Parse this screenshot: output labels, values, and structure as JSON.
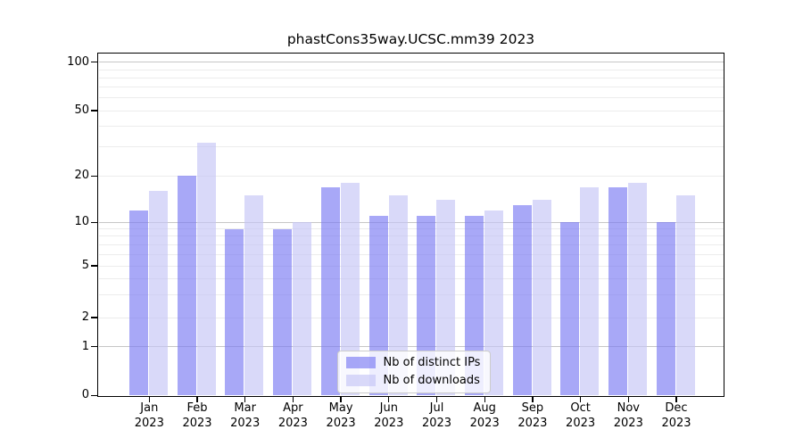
{
  "title": "phastCons35way.UCSC.mm39 2023",
  "chart_data": {
    "type": "bar",
    "categories": [
      "Jan",
      "Feb",
      "Mar",
      "Apr",
      "May",
      "Jun",
      "Jul",
      "Aug",
      "Sep",
      "Oct",
      "Nov",
      "Dec"
    ],
    "category_year": "2023",
    "series": [
      {
        "name": "Nb of distinct IPs",
        "color": "rgba(121,121,243,0.65)",
        "values": [
          12,
          20,
          9,
          9,
          17,
          11,
          11,
          11,
          13,
          10,
          17,
          10
        ]
      },
      {
        "name": "Nb of downloads",
        "color": "rgba(196,196,246,0.65)",
        "values": [
          16,
          32,
          15,
          10,
          18,
          15,
          14,
          12,
          14,
          17,
          18,
          15
        ]
      }
    ],
    "xlabel": "",
    "ylabel": "",
    "y_axis": {
      "ticks": [
        0,
        1,
        2,
        5,
        10,
        20,
        50,
        100
      ],
      "scale": "log-like (symlog)",
      "range": [
        0,
        110
      ]
    },
    "grid": {
      "orientation": "horizontal",
      "major_lines": [
        1,
        10,
        100
      ],
      "minor_lines": [
        2,
        3,
        4,
        5,
        6,
        7,
        8,
        9,
        20,
        30,
        40,
        50,
        60,
        70,
        80,
        90
      ]
    },
    "legend": {
      "position": "bottom-center",
      "entries": [
        "Nb of distinct IPs",
        "Nb of downloads"
      ]
    }
  },
  "colors": {
    "bar_distinct_ips": "rgba(121,121,243,0.65)",
    "bar_downloads": "rgba(196,196,246,0.65)",
    "grid_major": "#c6c6c6",
    "grid_minor": "#ececec",
    "spine": "#000000",
    "background": "#ffffff",
    "legend_border": "#cccccc"
  }
}
